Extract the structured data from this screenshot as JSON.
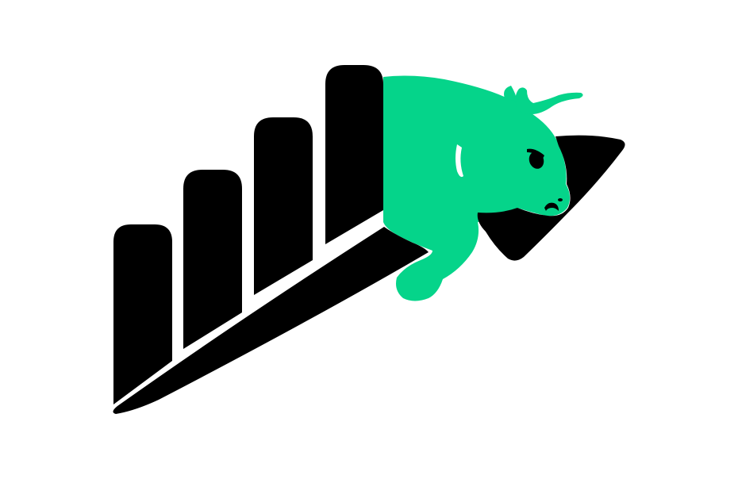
{
  "logo": {
    "name": "bull-market-growth-logo",
    "icon": "bull-with-rising-bar-chart-and-arrow",
    "bar_count": 4,
    "colors": {
      "background": "#ffffff",
      "primary": "#000000",
      "accent": "#05d48a"
    }
  }
}
